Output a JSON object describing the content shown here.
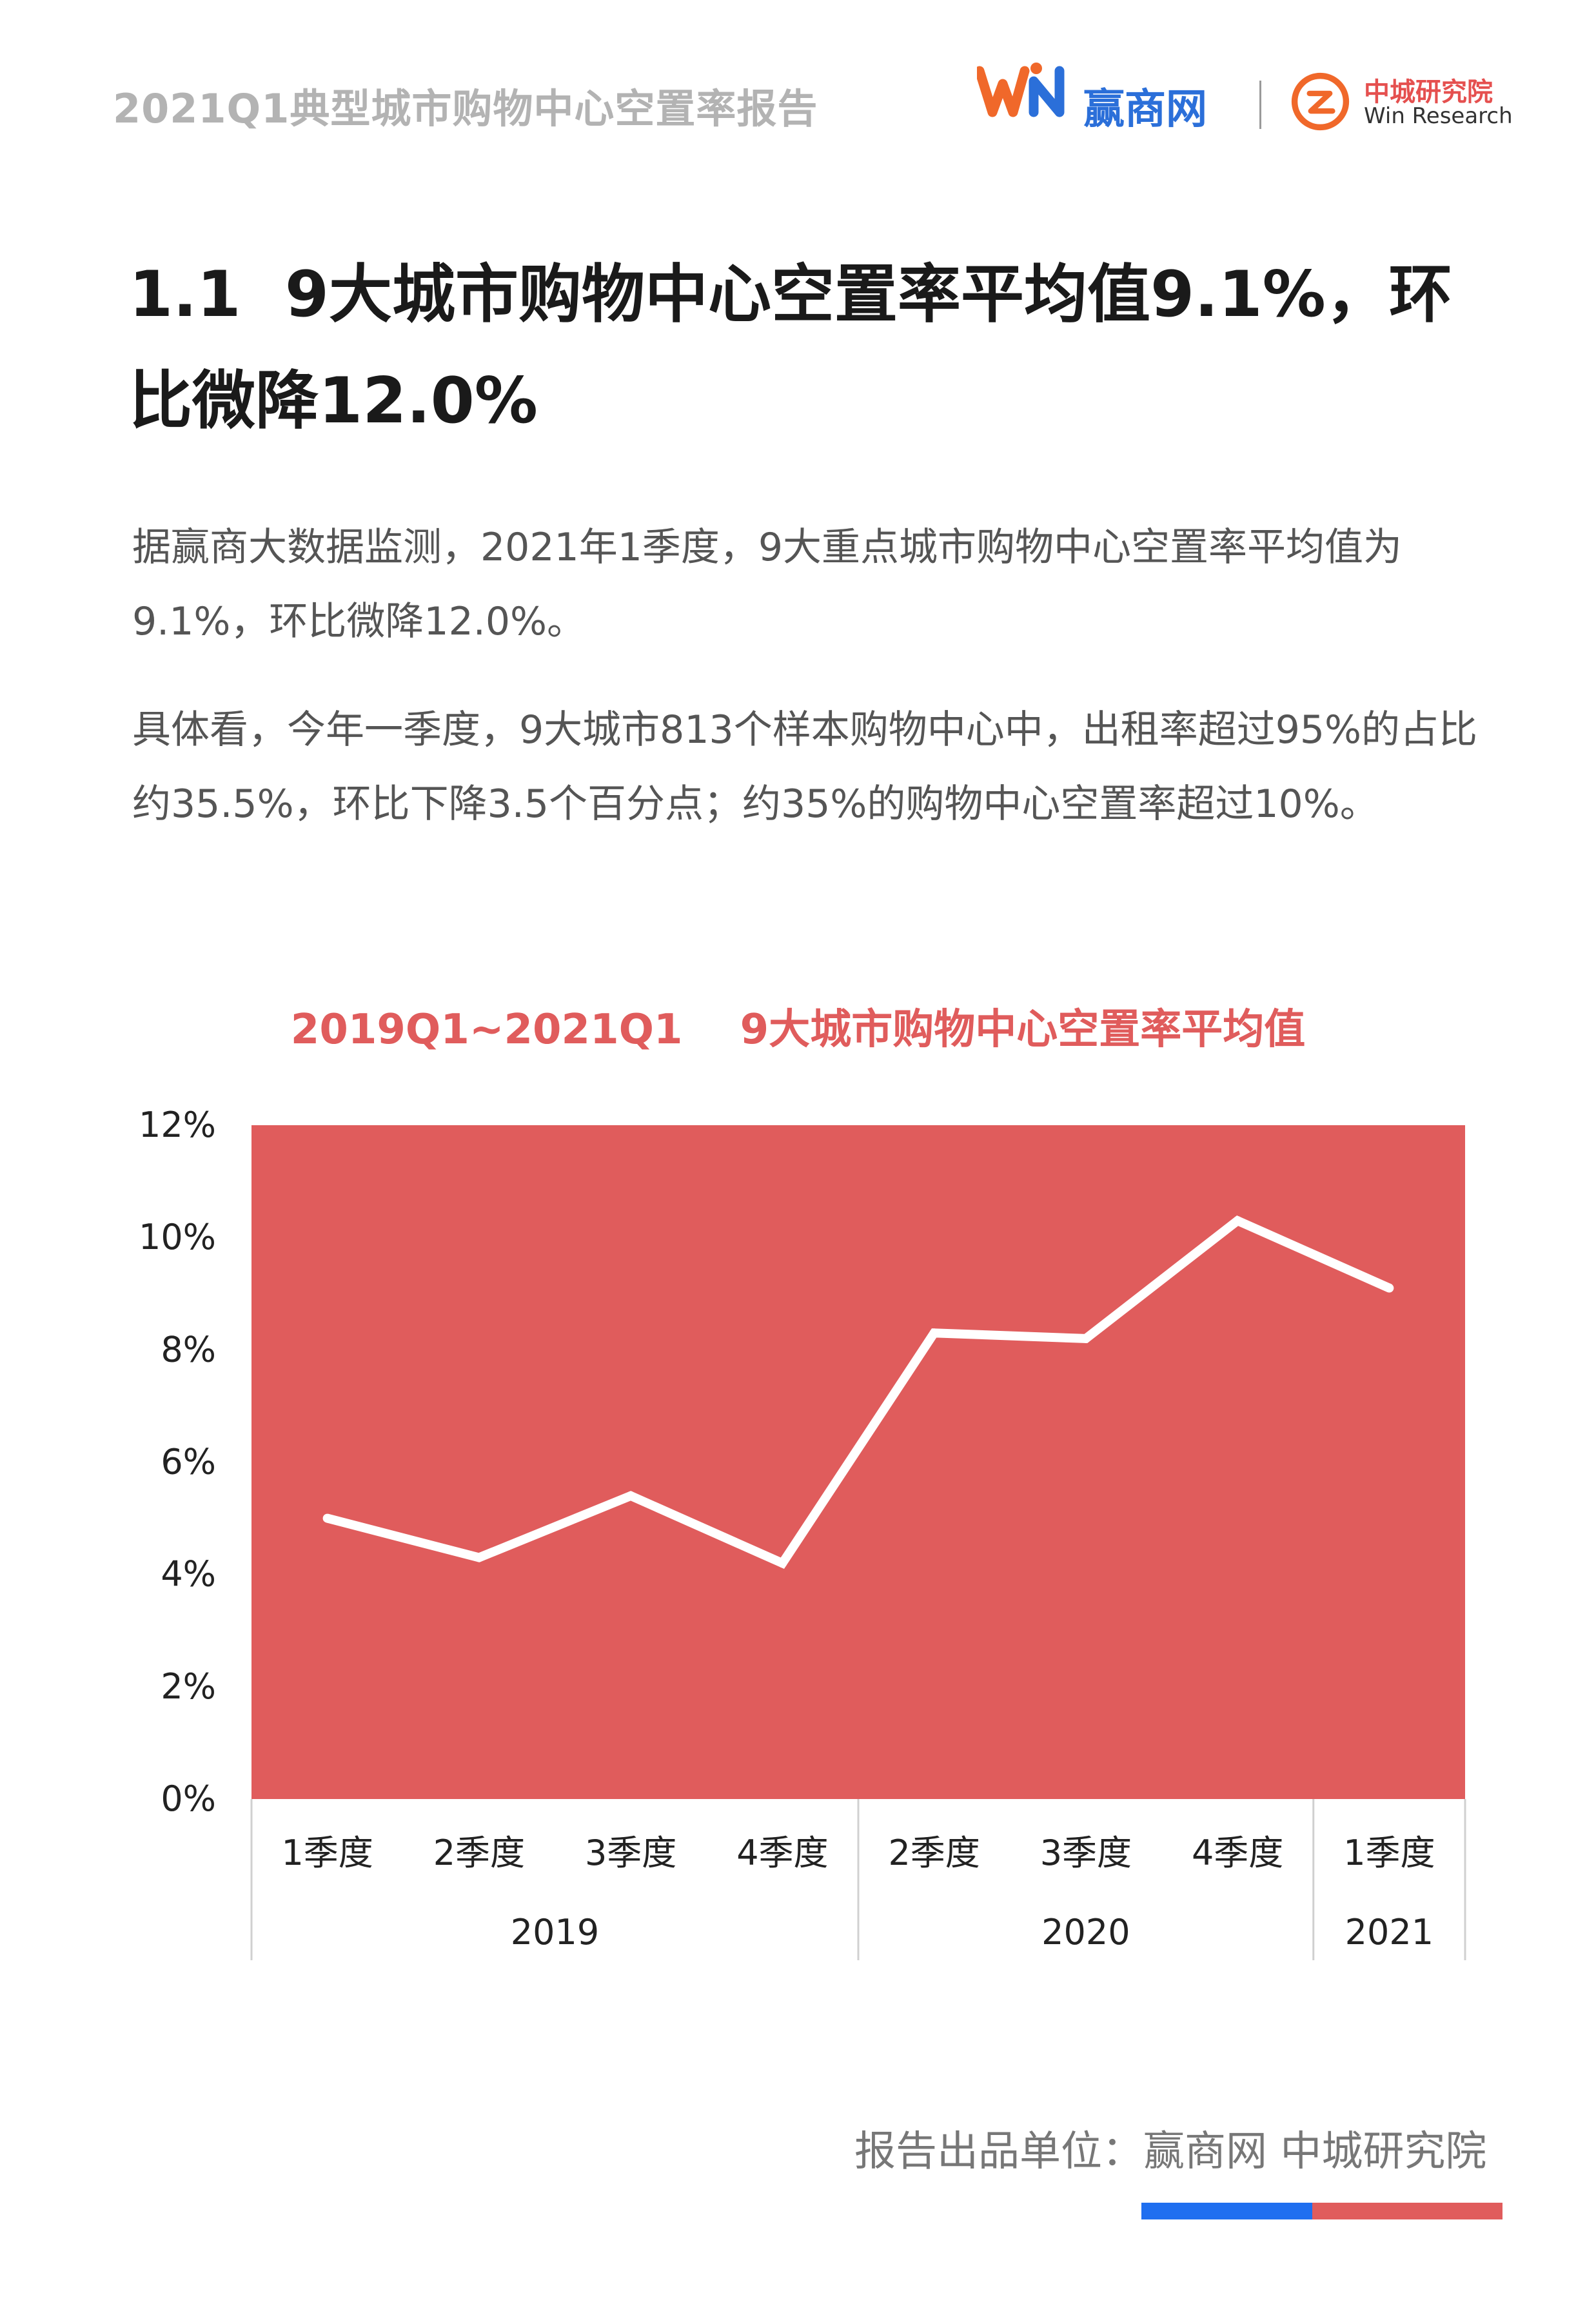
{
  "header": {
    "report_title": "2021Q1典型城市购物中心空置率报告",
    "brand_name": "赢商网",
    "research_name_cn": "中城研究院",
    "research_name_en": "Win Research",
    "brand_logo_text": "WIN",
    "brand_color": "#2b6fd9",
    "accent_color": "#e05c5c"
  },
  "section": {
    "heading_line1": "1.1  9大城市购物中心空置率平均值9.1%，环",
    "heading_line2": "比微降12.0%"
  },
  "paragraphs": {
    "p1": "据赢商大数据监测，2021年1季度，9大重点城市购物中心空置率平均值为9.1%，环比微降12.0%。",
    "p2": "具体看，今年一季度，9大城市813个样本购物中心中，出租率超过95%的占比约35.5%，环比下降3.5个百分点；约35%的购物中心空置率超过10%。"
  },
  "chart_data": {
    "type": "line",
    "title": "2019Q1~2021Q1    9大城市购物中心空置率平均值",
    "categories": [
      "1季度",
      "2季度",
      "3季度",
      "4季度",
      "2季度",
      "3季度",
      "4季度",
      "1季度"
    ],
    "year_groups": [
      {
        "label": "2019",
        "count": 4
      },
      {
        "label": "2020",
        "count": 3
      },
      {
        "label": "2021",
        "count": 1
      }
    ],
    "series": [
      {
        "values": [
          5.0,
          4.3,
          5.4,
          4.2,
          8.3,
          8.2,
          10.3,
          9.1
        ]
      }
    ],
    "y_tick_labels": [
      "0%",
      "2%",
      "4%",
      "6%",
      "8%",
      "10%",
      "12%"
    ],
    "ylim": [
      0,
      12
    ],
    "y_unit": "%",
    "plot_background": "#e05c5c",
    "line_color": "#ffffff",
    "grid": false
  },
  "footer": {
    "publisher_text": "报告出品单位：赢商网  中城研究院",
    "bar_colors": [
      "#1f6ff0",
      "#e05c5c"
    ]
  }
}
